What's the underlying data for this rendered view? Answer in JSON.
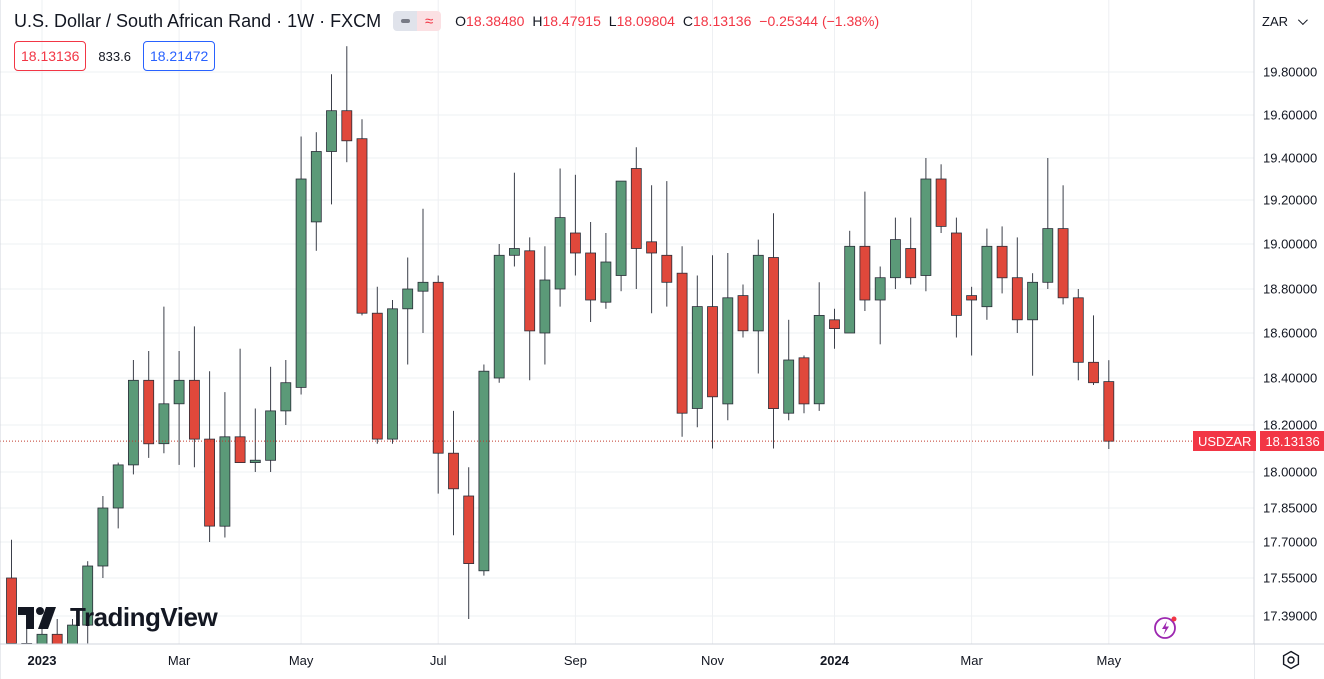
{
  "legend": {
    "symbol": "U.S. Dollar / South African Rand",
    "interval": "1W",
    "exchange": "FXCM",
    "open_label": "O",
    "open": "18.38480",
    "high_label": "H",
    "high": "18.47915",
    "low_label": "L",
    "low": "18.09804",
    "close_label": "C",
    "close": "18.13136",
    "change": "−0.25344 (−1.38%)"
  },
  "quote": {
    "sell": "18.13136",
    "spread": "833.6",
    "buy": "18.21472"
  },
  "currency": "ZAR",
  "last_price_label": {
    "symbol": "USDZAR",
    "price": "18.13136"
  },
  "brand": "TradingView",
  "colors": {
    "up": "#5b9a78",
    "down": "#e0483b",
    "grid": "#eef0f3",
    "last_price_line": "#c0392b"
  },
  "icons": {
    "status": "status-pill-icon",
    "flash": "flash-icon",
    "settings": "gear-icon"
  },
  "chart_data": {
    "type": "candlestick",
    "symbol": "USDZAR",
    "interval": "1W",
    "ylim": [
      17.3,
      19.92
    ],
    "y_ticks": [
      17.39,
      17.55,
      17.7,
      17.85,
      18.0,
      18.2,
      18.4,
      18.6,
      18.8,
      19.0,
      19.2,
      19.4,
      19.6,
      19.8
    ],
    "y_tick_labels": [
      "17.39000",
      "17.55000",
      "17.70000",
      "17.85000",
      "18.00000",
      "18.20000",
      "18.40000",
      "18.60000",
      "18.80000",
      "19.00000",
      "19.20000",
      "19.40000",
      "19.60000",
      "19.80000"
    ],
    "x_ticks": [
      {
        "label": "2023",
        "index": 2,
        "bold": true
      },
      {
        "label": "Mar",
        "index": 11
      },
      {
        "label": "May",
        "index": 19
      },
      {
        "label": "Jul",
        "index": 28
      },
      {
        "label": "Sep",
        "index": 37
      },
      {
        "label": "Nov",
        "index": 46
      },
      {
        "label": "2024",
        "index": 54,
        "bold": true
      },
      {
        "label": "Mar",
        "index": 63
      },
      {
        "label": "May",
        "index": 72
      }
    ],
    "last_price": 18.13136,
    "grid": true,
    "candles": [
      {
        "o": 17.55,
        "h": 17.71,
        "l": 17.2,
        "c": 17.3
      },
      {
        "o": 17.3,
        "h": 17.38,
        "l": 17.12,
        "c": 17.28
      },
      {
        "o": 17.28,
        "h": 17.36,
        "l": 17.15,
        "c": 17.33
      },
      {
        "o": 17.33,
        "h": 17.38,
        "l": 17.18,
        "c": 17.25
      },
      {
        "o": 17.25,
        "h": 17.38,
        "l": 17.15,
        "c": 17.36
      },
      {
        "o": 17.36,
        "h": 17.62,
        "l": 17.3,
        "c": 17.6
      },
      {
        "o": 17.6,
        "h": 17.9,
        "l": 17.55,
        "c": 17.85
      },
      {
        "o": 17.85,
        "h": 18.04,
        "l": 17.76,
        "c": 18.03
      },
      {
        "o": 18.03,
        "h": 18.48,
        "l": 17.99,
        "c": 18.39
      },
      {
        "o": 18.39,
        "h": 18.52,
        "l": 18.06,
        "c": 18.12
      },
      {
        "o": 18.12,
        "h": 18.72,
        "l": 18.08,
        "c": 18.29
      },
      {
        "o": 18.29,
        "h": 18.52,
        "l": 18.03,
        "c": 18.39
      },
      {
        "o": 18.39,
        "h": 18.63,
        "l": 18.02,
        "c": 18.14
      },
      {
        "o": 18.14,
        "h": 18.43,
        "l": 17.7,
        "c": 17.77
      },
      {
        "o": 17.77,
        "h": 18.34,
        "l": 17.72,
        "c": 18.15
      },
      {
        "o": 18.15,
        "h": 18.53,
        "l": 18.06,
        "c": 18.04
      },
      {
        "o": 18.04,
        "h": 18.27,
        "l": 18.0,
        "c": 18.05
      },
      {
        "o": 18.05,
        "h": 18.45,
        "l": 18.0,
        "c": 18.26
      },
      {
        "o": 18.26,
        "h": 18.48,
        "l": 18.2,
        "c": 18.38
      },
      {
        "o": 18.36,
        "h": 19.5,
        "l": 18.33,
        "c": 19.3
      },
      {
        "o": 19.1,
        "h": 19.52,
        "l": 18.97,
        "c": 19.43
      },
      {
        "o": 19.43,
        "h": 19.79,
        "l": 19.18,
        "c": 19.62
      },
      {
        "o": 19.62,
        "h": 19.92,
        "l": 19.38,
        "c": 19.48
      },
      {
        "o": 19.49,
        "h": 19.58,
        "l": 18.68,
        "c": 18.69
      },
      {
        "o": 18.69,
        "h": 18.81,
        "l": 18.12,
        "c": 18.14
      },
      {
        "o": 18.14,
        "h": 18.75,
        "l": 18.12,
        "c": 18.71
      },
      {
        "o": 18.71,
        "h": 18.94,
        "l": 18.46,
        "c": 18.8
      },
      {
        "o": 18.79,
        "h": 19.16,
        "l": 18.6,
        "c": 18.83
      },
      {
        "o": 18.83,
        "h": 18.86,
        "l": 17.91,
        "c": 18.08
      },
      {
        "o": 18.08,
        "h": 18.26,
        "l": 17.73,
        "c": 17.93
      },
      {
        "o": 17.9,
        "h": 18.02,
        "l": 17.38,
        "c": 17.61
      },
      {
        "o": 17.58,
        "h": 18.46,
        "l": 17.56,
        "c": 18.43
      },
      {
        "o": 18.4,
        "h": 19.0,
        "l": 18.38,
        "c": 18.95
      },
      {
        "o": 18.95,
        "h": 19.33,
        "l": 18.9,
        "c": 18.98
      },
      {
        "o": 18.97,
        "h": 19.03,
        "l": 18.39,
        "c": 18.61
      },
      {
        "o": 18.6,
        "h": 18.99,
        "l": 18.46,
        "c": 18.84
      },
      {
        "o": 18.8,
        "h": 19.35,
        "l": 18.72,
        "c": 19.12
      },
      {
        "o": 19.05,
        "h": 19.32,
        "l": 18.86,
        "c": 18.96
      },
      {
        "o": 18.96,
        "h": 19.1,
        "l": 18.65,
        "c": 18.75
      },
      {
        "o": 18.74,
        "h": 19.05,
        "l": 18.71,
        "c": 18.92
      },
      {
        "o": 18.86,
        "h": 19.28,
        "l": 18.79,
        "c": 19.29
      },
      {
        "o": 19.35,
        "h": 19.45,
        "l": 18.8,
        "c": 18.98
      },
      {
        "o": 19.01,
        "h": 19.27,
        "l": 18.69,
        "c": 18.96
      },
      {
        "o": 18.95,
        "h": 19.29,
        "l": 18.72,
        "c": 18.83
      },
      {
        "o": 18.87,
        "h": 18.99,
        "l": 18.15,
        "c": 18.25
      },
      {
        "o": 18.27,
        "h": 18.86,
        "l": 18.19,
        "c": 18.72
      },
      {
        "o": 18.72,
        "h": 18.95,
        "l": 18.1,
        "c": 18.32
      },
      {
        "o": 18.29,
        "h": 18.96,
        "l": 18.22,
        "c": 18.76
      },
      {
        "o": 18.77,
        "h": 18.82,
        "l": 18.58,
        "c": 18.61
      },
      {
        "o": 18.61,
        "h": 19.02,
        "l": 18.42,
        "c": 18.95
      },
      {
        "o": 18.94,
        "h": 19.14,
        "l": 18.1,
        "c": 18.27
      },
      {
        "o": 18.25,
        "h": 18.66,
        "l": 18.22,
        "c": 18.48
      },
      {
        "o": 18.49,
        "h": 18.5,
        "l": 18.25,
        "c": 18.29
      },
      {
        "o": 18.29,
        "h": 18.83,
        "l": 18.26,
        "c": 18.68
      },
      {
        "o": 18.66,
        "h": 18.71,
        "l": 18.53,
        "c": 18.62
      },
      {
        "o": 18.6,
        "h": 19.06,
        "l": 18.6,
        "c": 18.99
      },
      {
        "o": 18.99,
        "h": 19.24,
        "l": 18.7,
        "c": 18.75
      },
      {
        "o": 18.75,
        "h": 18.9,
        "l": 18.55,
        "c": 18.85
      },
      {
        "o": 18.85,
        "h": 19.12,
        "l": 18.8,
        "c": 19.02
      },
      {
        "o": 18.98,
        "h": 19.12,
        "l": 18.82,
        "c": 18.85
      },
      {
        "o": 18.86,
        "h": 19.4,
        "l": 18.79,
        "c": 19.3
      },
      {
        "o": 19.3,
        "h": 19.37,
        "l": 19.05,
        "c": 19.08
      },
      {
        "o": 19.05,
        "h": 19.12,
        "l": 18.58,
        "c": 18.68
      },
      {
        "o": 18.77,
        "h": 18.81,
        "l": 18.5,
        "c": 18.75
      },
      {
        "o": 18.72,
        "h": 19.07,
        "l": 18.66,
        "c": 18.99
      },
      {
        "o": 18.99,
        "h": 19.08,
        "l": 18.78,
        "c": 18.85
      },
      {
        "o": 18.85,
        "h": 19.03,
        "l": 18.6,
        "c": 18.66
      },
      {
        "o": 18.66,
        "h": 18.87,
        "l": 18.41,
        "c": 18.83
      },
      {
        "o": 18.83,
        "h": 19.4,
        "l": 18.8,
        "c": 19.07
      },
      {
        "o": 19.07,
        "h": 19.27,
        "l": 18.73,
        "c": 18.76
      },
      {
        "o": 18.76,
        "h": 18.8,
        "l": 18.39,
        "c": 18.47
      },
      {
        "o": 18.47,
        "h": 18.68,
        "l": 18.37,
        "c": 18.38
      },
      {
        "o": 18.3848,
        "h": 18.47915,
        "l": 18.09804,
        "c": 18.13136
      }
    ]
  }
}
